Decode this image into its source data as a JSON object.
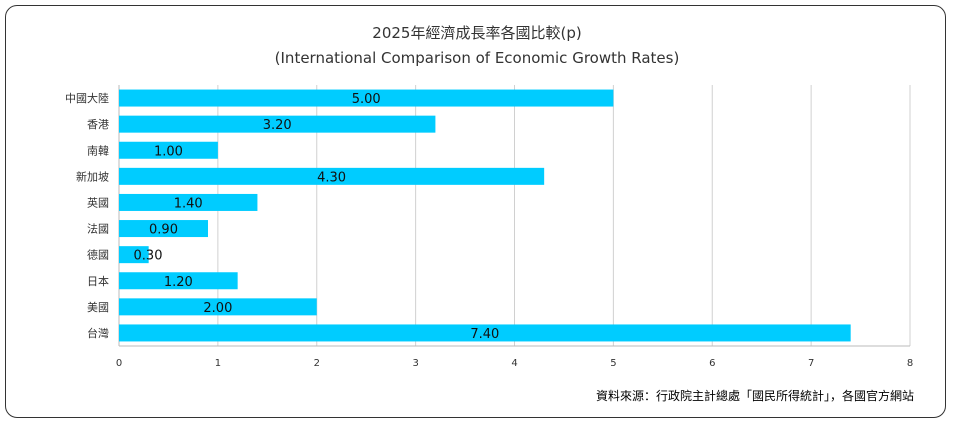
{
  "chart_data": {
    "type": "bar",
    "orientation": "horizontal",
    "title": "2025年經濟成長率各國比較(p)",
    "subtitle": "(International Comparison of Economic Growth Rates)",
    "categories": [
      "中國大陸",
      "香港",
      "南韓",
      "新加坡",
      "英國",
      "法國",
      "德國",
      "日本",
      "美國",
      "台灣"
    ],
    "values": [
      5.0,
      3.2,
      1.0,
      4.3,
      1.4,
      0.9,
      0.3,
      1.2,
      2.0,
      7.4
    ],
    "data_labels": [
      "5.00",
      "3.20",
      "1.00",
      "4.30",
      "1.40",
      "0.90",
      "0.30",
      "1.20",
      "2.00",
      "7.40"
    ],
    "xlim": [
      0,
      8
    ],
    "xticks": [
      "0",
      "1",
      "2",
      "3",
      "4",
      "5",
      "6",
      "7",
      "8"
    ],
    "grid": true,
    "bar_color": "#00CCFF",
    "source": "資料來源：行政院主計總處「國民所得統計」，各國官方網站"
  }
}
